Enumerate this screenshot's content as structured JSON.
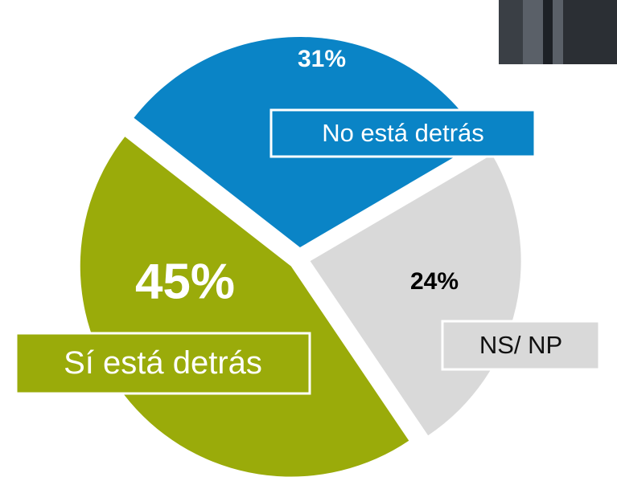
{
  "chart_data": {
    "type": "pie",
    "categories": [
      "No está detrás",
      "NS/ NP",
      "Sí está detrás"
    ],
    "values": [
      31,
      24,
      45
    ],
    "value_labels": [
      "31%",
      "24%",
      "45%"
    ],
    "colors": [
      "#0a84c6",
      "#d9d9d9",
      "#9aab0a"
    ]
  }
}
